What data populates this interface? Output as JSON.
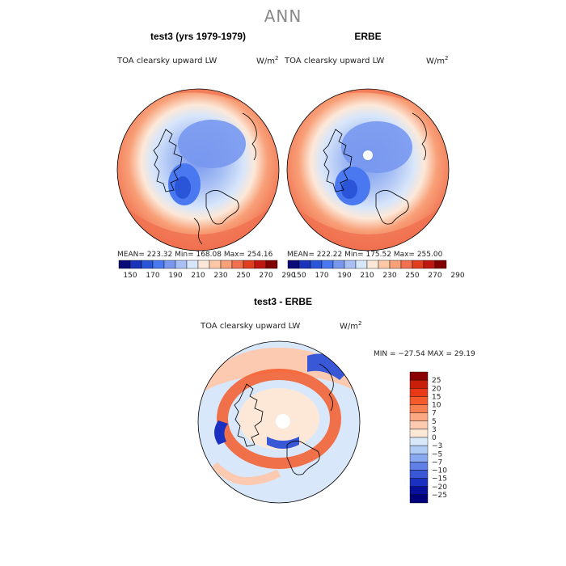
{
  "figure": {
    "title": "ANN"
  },
  "panels": [
    {
      "title": "test3 (yrs 1979-1979)",
      "field_label": "TOA clearsky upward LW",
      "units": "W/m",
      "units_exp": "2",
      "stats": "MEAN= 223.32   Min= 168.08   Max= 254.16"
    },
    {
      "title": "ERBE",
      "field_label": "TOA clearsky upward LW",
      "units": "W/m",
      "units_exp": "2",
      "stats": "MEAN= 222.22   Min= 175.52   Max= 255.00"
    }
  ],
  "abs_colorbar": {
    "colors": [
      "#0a0a78",
      "#1a33b8",
      "#2a55d8",
      "#4a78f0",
      "#7898f0",
      "#a8c0f4",
      "#d8e6fa",
      "#fce8d8",
      "#fcc8a8",
      "#f8a078",
      "#f07050",
      "#e04020",
      "#c01810",
      "#800000"
    ],
    "tick_labels": [
      "150",
      "170",
      "190",
      "210",
      "230",
      "250",
      "270",
      "290"
    ]
  },
  "diff_panel": {
    "title": "test3 - ERBE",
    "field_label": "TOA clearsky upward LW",
    "units": "W/m",
    "units_exp": "2",
    "stats": "MIN = −27.54  MAX =   29.19"
  },
  "diff_colorbar": {
    "colors": [
      "#8b0000",
      "#c81e0a",
      "#e83818",
      "#f45a2a",
      "#f88050",
      "#fca882",
      "#fccab0",
      "#fde8d8",
      "#d8e8fa",
      "#b0ccf4",
      "#8aa8f0",
      "#6080e8",
      "#3858d8",
      "#1a30c0",
      "#06109a",
      "#00007a"
    ],
    "tick_labels": [
      "25",
      "20",
      "15",
      "10",
      "7",
      "5",
      "3",
      "0",
      "−3",
      "−5",
      "−7",
      "−10",
      "−15",
      "−20",
      "−25"
    ]
  }
}
